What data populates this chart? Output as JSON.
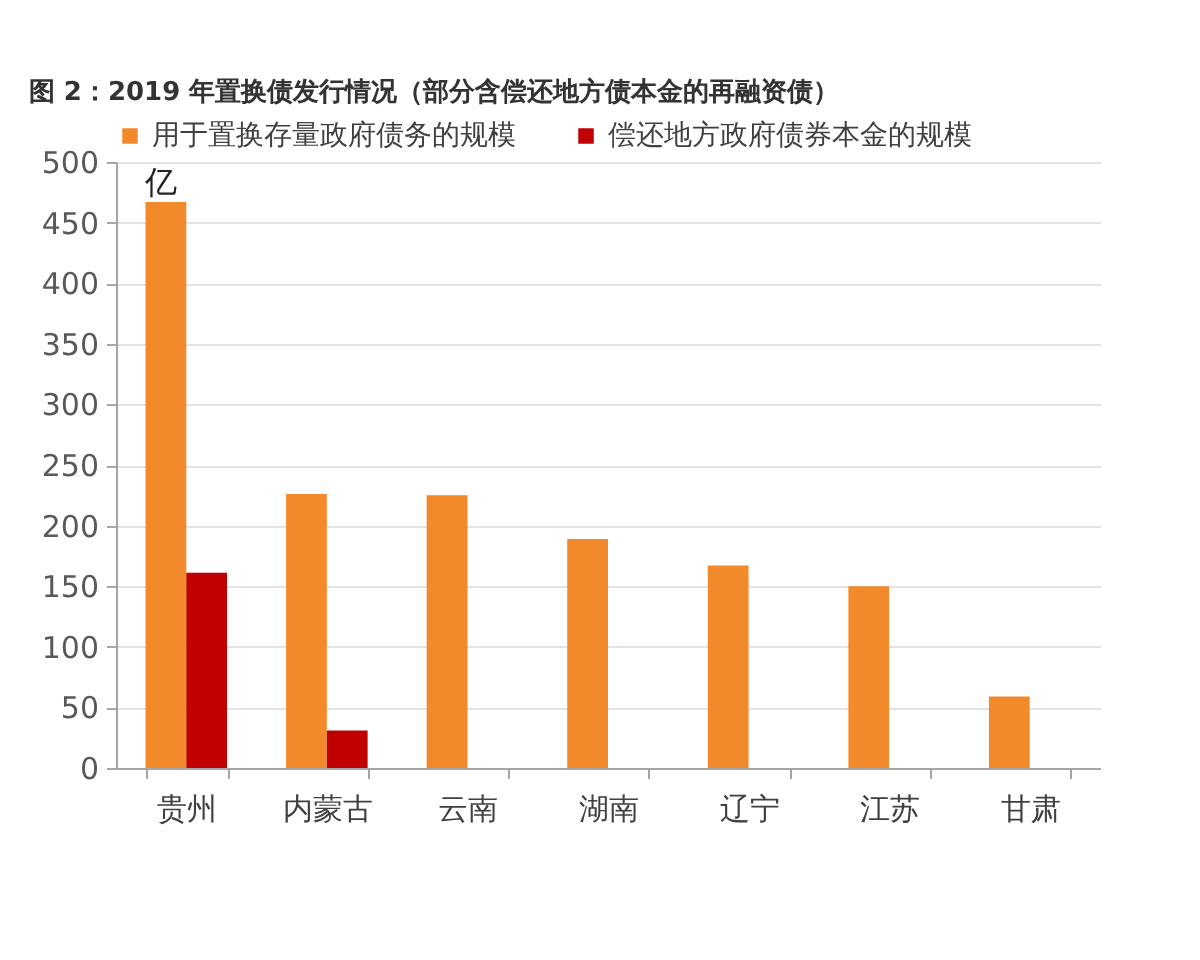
{
  "chart_data": {
    "type": "bar",
    "title": "图 2：2019 年置换债发行情况（部分含偿还地方债本金的再融资债）",
    "ylabel": "亿",
    "categories": [
      "贵州",
      "内蒙古",
      "云南",
      "湖南",
      "辽宁",
      "江苏",
      "甘肃"
    ],
    "series": [
      {
        "name": "用于置换存量政府债务的规模",
        "color": "#f28a2b",
        "values": [
          467,
          226,
          225,
          189,
          167,
          150,
          59
        ]
      },
      {
        "name": "偿还地方政府债券本金的规模",
        "color": "#c00000",
        "values": [
          161,
          31,
          null,
          null,
          null,
          null,
          null
        ]
      }
    ],
    "ylim": [
      0,
      500
    ],
    "yticks": [
      0,
      50,
      100,
      150,
      200,
      250,
      300,
      350,
      400,
      450,
      500
    ],
    "grid": "y",
    "legend": "top"
  }
}
